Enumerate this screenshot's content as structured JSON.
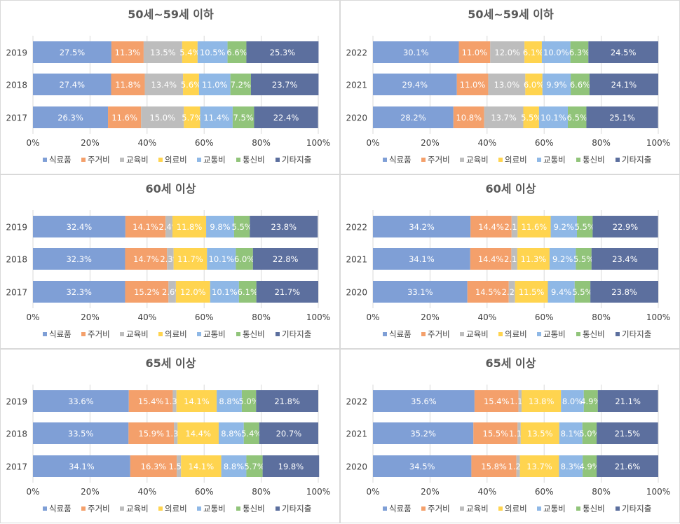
{
  "chart_data": [
    {
      "type": "bar",
      "stacked": "percent",
      "orientation": "horizontal",
      "title": "50세~59세 이하",
      "categories": [
        "2019",
        "2018",
        "2017"
      ],
      "series": [
        {
          "name": "식료품",
          "color": "#7f9fd6",
          "values": [
            27.5,
            27.4,
            26.3
          ]
        },
        {
          "name": "주거비",
          "color": "#f4a06b",
          "values": [
            11.3,
            11.8,
            11.6
          ]
        },
        {
          "name": "교육비",
          "color": "#bdbdbd",
          "values": [
            13.5,
            13.4,
            15.0
          ]
        },
        {
          "name": "의료비",
          "color": "#ffd44f",
          "values": [
            5.4,
            5.6,
            5.7
          ]
        },
        {
          "name": "교통비",
          "color": "#8fb8e6",
          "values": [
            10.5,
            11.0,
            11.4
          ]
        },
        {
          "name": "통신비",
          "color": "#91c47a",
          "values": [
            6.6,
            7.2,
            7.5
          ]
        },
        {
          "name": "기타지출",
          "color": "#5c6f9e",
          "values": [
            25.3,
            23.7,
            22.4
          ]
        }
      ],
      "value_labels": [
        [
          "27.5%",
          "11.3%",
          "13.5%",
          "5.4%",
          "10.5%",
          "6.6%",
          "25.3%"
        ],
        [
          "27.4%",
          "11.8%",
          "13.4%",
          "5.6%",
          "11.0%",
          "7.2%",
          "23.7%"
        ],
        [
          "26.3%",
          "11.6%",
          "15.0%",
          "5.7%",
          "11.4%",
          "7.5%",
          "22.4%"
        ]
      ],
      "xlim": [
        0,
        100
      ],
      "xticks": [
        "0%",
        "20%",
        "40%",
        "60%",
        "80%",
        "100%"
      ],
      "legend": "bottom",
      "grid": true
    },
    {
      "type": "bar",
      "stacked": "percent",
      "orientation": "horizontal",
      "title": "50세~59세 이하",
      "categories": [
        "2022",
        "2021",
        "2020"
      ],
      "series": [
        {
          "name": "식료품",
          "color": "#7f9fd6",
          "values": [
            30.1,
            29.4,
            28.2
          ]
        },
        {
          "name": "주거비",
          "color": "#f4a06b",
          "values": [
            11.0,
            11.0,
            10.8
          ]
        },
        {
          "name": "교육비",
          "color": "#bdbdbd",
          "values": [
            12.0,
            13.0,
            13.7
          ]
        },
        {
          "name": "의료비",
          "color": "#ffd44f",
          "values": [
            6.1,
            6.0,
            5.5
          ]
        },
        {
          "name": "교통비",
          "color": "#8fb8e6",
          "values": [
            10.0,
            9.9,
            10.1
          ]
        },
        {
          "name": "통신비",
          "color": "#91c47a",
          "values": [
            6.3,
            6.6,
            6.5
          ]
        },
        {
          "name": "기타지출",
          "color": "#5c6f9e",
          "values": [
            24.5,
            24.1,
            25.1
          ]
        }
      ],
      "value_labels": [
        [
          "30.1%",
          "11.0%",
          "12.0%",
          "6.1%",
          "10.0%",
          "6.3%",
          "24.5%"
        ],
        [
          "29.4%",
          "11.0%",
          "13.0%",
          "6.0%",
          "9.9%",
          "6.6%",
          "24.1%"
        ],
        [
          "28.2%",
          "10.8%",
          "13.7%",
          "5.5%",
          "10.1%",
          "6.5%",
          "25.1%"
        ]
      ],
      "xlim": [
        0,
        100
      ],
      "xticks": [
        "0%",
        "20%",
        "40%",
        "60%",
        "80%",
        "100%"
      ],
      "legend": "bottom",
      "grid": true
    },
    {
      "type": "bar",
      "stacked": "percent",
      "orientation": "horizontal",
      "title": "60세 이상",
      "categories": [
        "2019",
        "2018",
        "2017"
      ],
      "series": [
        {
          "name": "식료품",
          "color": "#7f9fd6",
          "values": [
            32.4,
            32.3,
            32.3
          ]
        },
        {
          "name": "주거비",
          "color": "#f4a06b",
          "values": [
            14.1,
            14.7,
            15.2
          ]
        },
        {
          "name": "교육비",
          "color": "#bdbdbd",
          "values": [
            2.4,
            2.3,
            2.6
          ]
        },
        {
          "name": "의료비",
          "color": "#ffd44f",
          "values": [
            11.8,
            11.7,
            12.0
          ]
        },
        {
          "name": "교통비",
          "color": "#8fb8e6",
          "values": [
            9.8,
            10.1,
            10.1
          ]
        },
        {
          "name": "통신비",
          "color": "#91c47a",
          "values": [
            5.5,
            6.0,
            6.1
          ]
        },
        {
          "name": "기타지출",
          "color": "#5c6f9e",
          "values": [
            23.8,
            22.8,
            21.7
          ]
        }
      ],
      "value_labels": [
        [
          "32.4%",
          "14.1%",
          "2.4%",
          "11.8%",
          "9.8%",
          "5.5%",
          "23.8%"
        ],
        [
          "32.3%",
          "14.7%",
          "2.3%",
          "11.7%",
          "10.1%",
          "6.0%",
          "22.8%"
        ],
        [
          "32.3%",
          "15.2%",
          "2.6%",
          "12.0%",
          "10.1%",
          "6.1%",
          "21.7%"
        ]
      ],
      "xlim": [
        0,
        100
      ],
      "xticks": [
        "0%",
        "20%",
        "40%",
        "60%",
        "80%",
        "100%"
      ],
      "legend": "bottom",
      "grid": true
    },
    {
      "type": "bar",
      "stacked": "percent",
      "orientation": "horizontal",
      "title": "60세 이상",
      "categories": [
        "2022",
        "2021",
        "2020"
      ],
      "series": [
        {
          "name": "식료품",
          "color": "#7f9fd6",
          "values": [
            34.2,
            34.1,
            33.1
          ]
        },
        {
          "name": "주거비",
          "color": "#f4a06b",
          "values": [
            14.4,
            14.4,
            14.5
          ]
        },
        {
          "name": "교육비",
          "color": "#bdbdbd",
          "values": [
            2.1,
            2.1,
            2.2
          ]
        },
        {
          "name": "의료비",
          "color": "#ffd44f",
          "values": [
            11.6,
            11.3,
            11.5
          ]
        },
        {
          "name": "교통비",
          "color": "#8fb8e6",
          "values": [
            9.2,
            9.2,
            9.4
          ]
        },
        {
          "name": "통신비",
          "color": "#91c47a",
          "values": [
            5.5,
            5.5,
            5.5
          ]
        },
        {
          "name": "기타지출",
          "color": "#5c6f9e",
          "values": [
            22.9,
            23.4,
            23.8
          ]
        }
      ],
      "value_labels": [
        [
          "34.2%",
          "14.4%",
          "2.1%",
          "11.6%",
          "9.2%",
          "5.5%",
          "22.9%"
        ],
        [
          "34.1%",
          "14.4%",
          "2.1%",
          "11.3%",
          "9.2%",
          "5.5%",
          "23.4%"
        ],
        [
          "33.1%",
          "14.5%",
          "2.2%",
          "11.5%",
          "9.4%",
          "5.5%",
          "23.8%"
        ]
      ],
      "xlim": [
        0,
        100
      ],
      "xticks": [
        "0%",
        "20%",
        "40%",
        "60%",
        "80%",
        "100%"
      ],
      "legend": "bottom",
      "grid": true
    },
    {
      "type": "bar",
      "stacked": "percent",
      "orientation": "horizontal",
      "title": "65세 이상",
      "categories": [
        "2019",
        "2018",
        "2017"
      ],
      "series": [
        {
          "name": "식료품",
          "color": "#7f9fd6",
          "values": [
            33.6,
            33.5,
            34.1
          ]
        },
        {
          "name": "주거비",
          "color": "#f4a06b",
          "values": [
            15.4,
            15.9,
            16.3
          ]
        },
        {
          "name": "교육비",
          "color": "#bdbdbd",
          "values": [
            1.3,
            1.3,
            1.5
          ]
        },
        {
          "name": "의료비",
          "color": "#ffd44f",
          "values": [
            14.1,
            14.4,
            14.1
          ]
        },
        {
          "name": "교통비",
          "color": "#8fb8e6",
          "values": [
            8.8,
            8.8,
            8.8
          ]
        },
        {
          "name": "통신비",
          "color": "#91c47a",
          "values": [
            5.0,
            5.4,
            5.7
          ]
        },
        {
          "name": "기타지출",
          "color": "#5c6f9e",
          "values": [
            21.8,
            20.7,
            19.8
          ]
        }
      ],
      "value_labels": [
        [
          "33.6%",
          "15.4%",
          "1.3%",
          "14.1%",
          "8.8%",
          "5.0%",
          "21.8%"
        ],
        [
          "33.5%",
          "15.9%",
          "1.3%",
          "14.4%",
          "8.8%",
          "5.4%",
          "20.7%"
        ],
        [
          "34.1%",
          "16.3%",
          "1.5%",
          "14.1%",
          "8.8%",
          "5.7%",
          "19.8%"
        ]
      ],
      "xlim": [
        0,
        100
      ],
      "xticks": [
        "0%",
        "20%",
        "40%",
        "60%",
        "80%",
        "100%"
      ],
      "legend": "bottom",
      "grid": true
    },
    {
      "type": "bar",
      "stacked": "percent",
      "orientation": "horizontal",
      "title": "65세 이상",
      "categories": [
        "2022",
        "2021",
        "2020"
      ],
      "series": [
        {
          "name": "식료품",
          "color": "#7f9fd6",
          "values": [
            35.6,
            35.2,
            34.5
          ]
        },
        {
          "name": "주거비",
          "color": "#f4a06b",
          "values": [
            15.4,
            15.5,
            15.8
          ]
        },
        {
          "name": "교육비",
          "color": "#bdbdbd",
          "values": [
            1.1,
            1.1,
            1.2
          ]
        },
        {
          "name": "의료비",
          "color": "#ffd44f",
          "values": [
            13.8,
            13.5,
            13.7
          ]
        },
        {
          "name": "교통비",
          "color": "#8fb8e6",
          "values": [
            8.0,
            8.1,
            8.3
          ]
        },
        {
          "name": "통신비",
          "color": "#91c47a",
          "values": [
            4.9,
            5.0,
            4.9
          ]
        },
        {
          "name": "기타지출",
          "color": "#5c6f9e",
          "values": [
            21.1,
            21.5,
            21.6
          ]
        }
      ],
      "value_labels": [
        [
          "35.6%",
          "15.4%",
          "1.1%",
          "13.8%",
          "8.0%",
          "4.9%",
          "21.1%"
        ],
        [
          "35.2%",
          "15.5%",
          "1.1%",
          "13.5%",
          "8.1%",
          "5.0%",
          "21.5%"
        ],
        [
          "34.5%",
          "15.8%",
          "1.2%",
          "13.7%",
          "8.3%",
          "4.9%",
          "21.6%"
        ]
      ],
      "xlim": [
        0,
        100
      ],
      "xticks": [
        "0%",
        "20%",
        "40%",
        "60%",
        "80%",
        "100%"
      ],
      "legend": "bottom",
      "grid": true
    }
  ]
}
